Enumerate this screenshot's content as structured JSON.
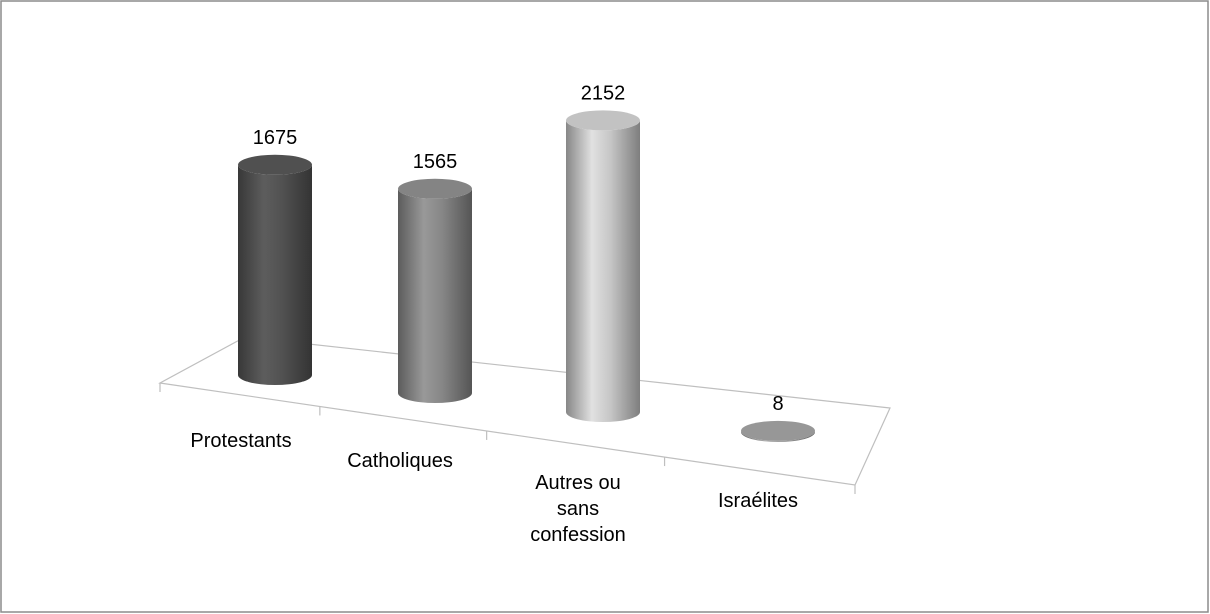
{
  "chart_data": {
    "type": "bar",
    "categories": [
      "Protestants",
      "Catholiques",
      "Autres ou sans confession",
      "Israélites"
    ],
    "values": [
      1675,
      1565,
      2152,
      8
    ],
    "colors": [
      "#4a4a4a",
      "#7a7a7a",
      "#b4b4b4",
      "#8c8c8c"
    ]
  }
}
